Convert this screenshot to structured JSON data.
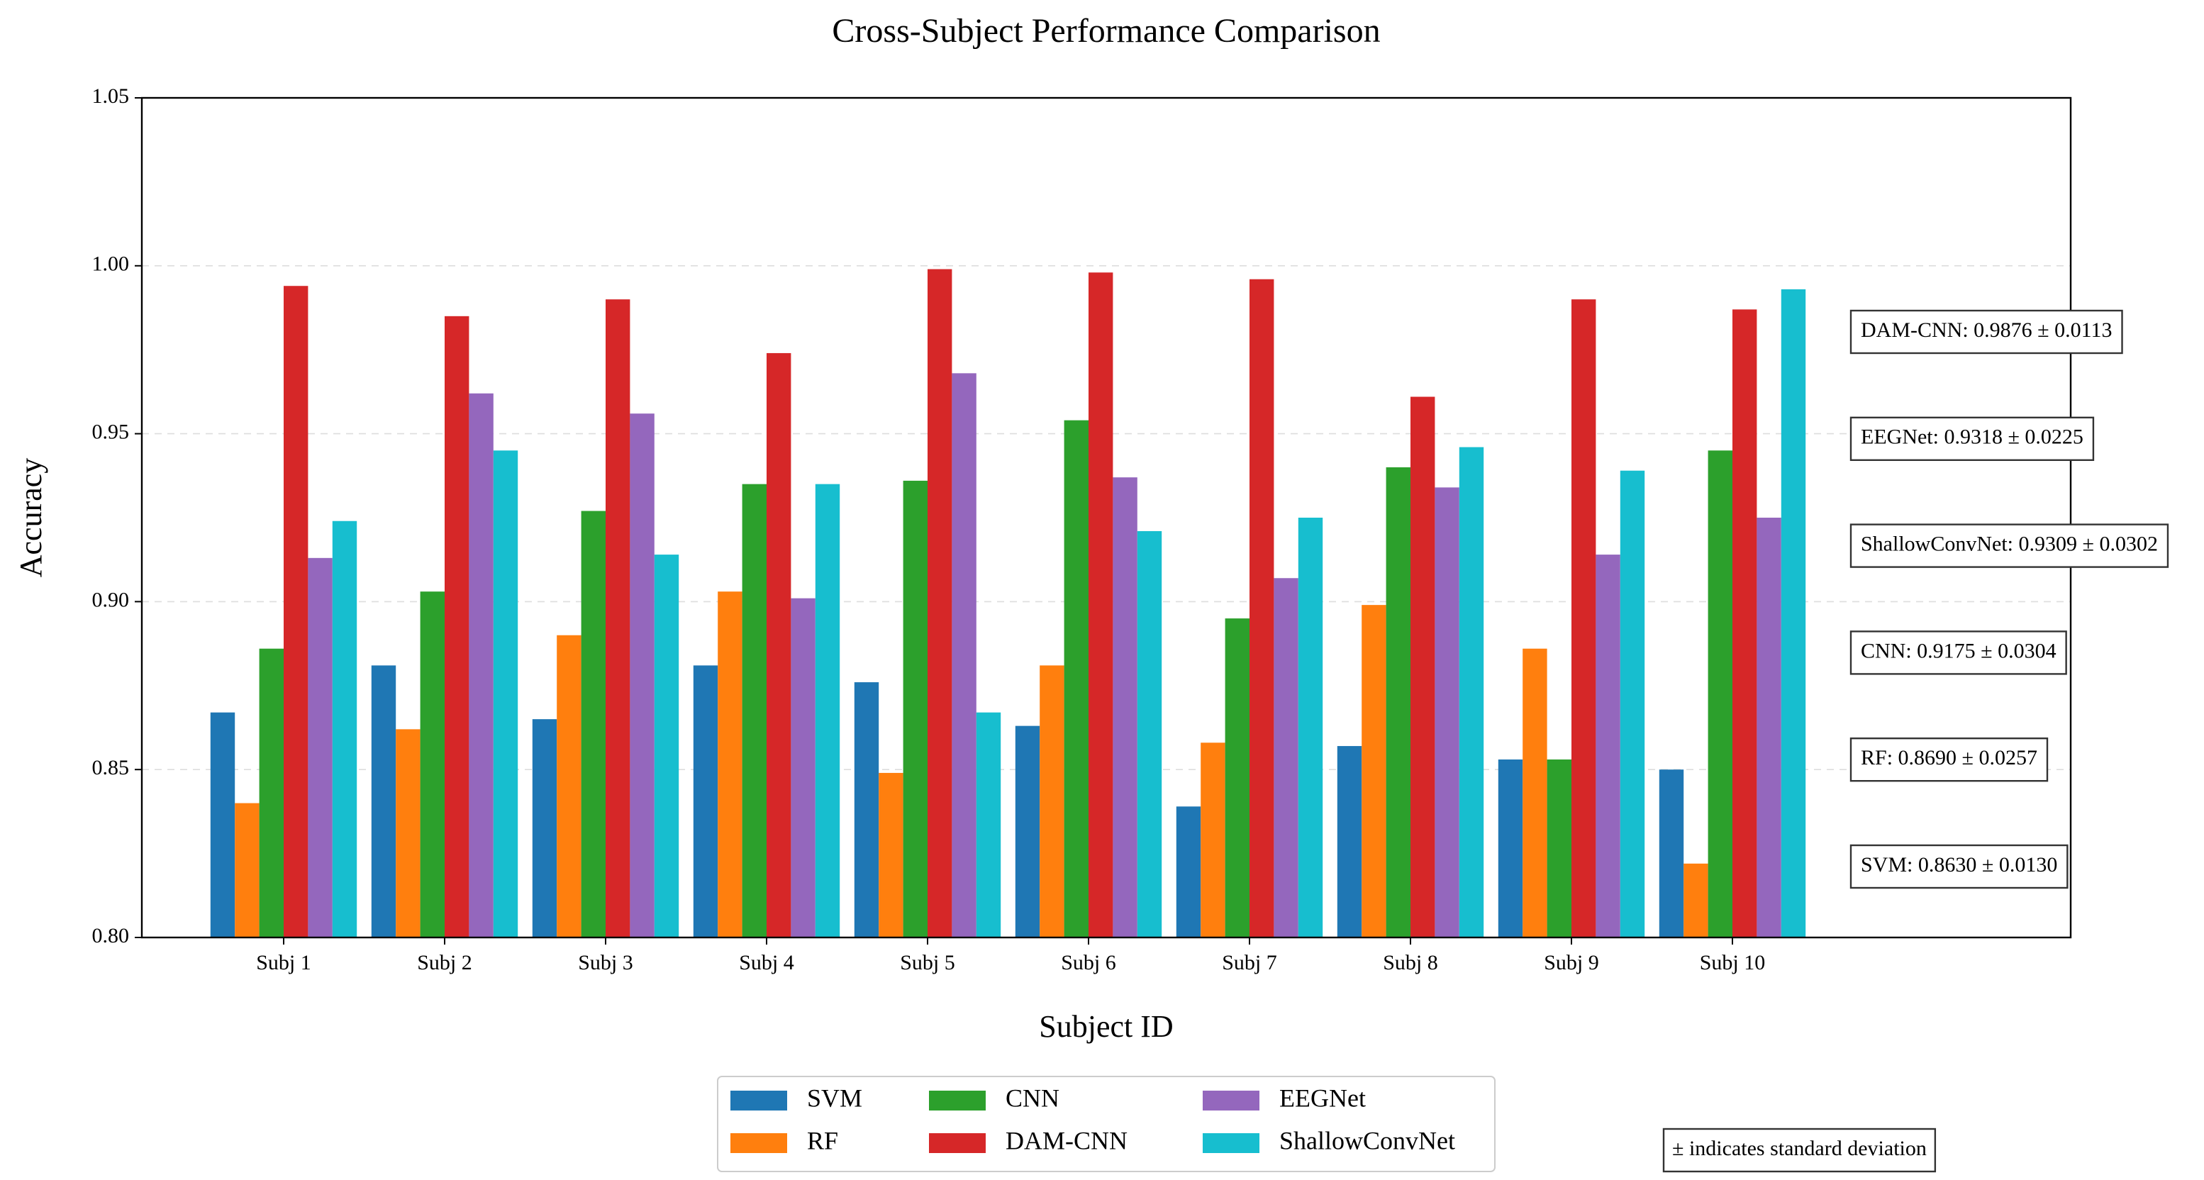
{
  "chart_data": {
    "type": "bar",
    "title": "Cross-Subject Performance Comparison",
    "x_label": "Subject ID",
    "y_label": "Accuracy",
    "categories": [
      "Subj 1",
      "Subj 2",
      "Subj 3",
      "Subj 4",
      "Subj 5",
      "Subj 6",
      "Subj 7",
      "Subj 8",
      "Subj 9",
      "Subj 10"
    ],
    "series": [
      {
        "name": "SVM",
        "color": "#1f77b4",
        "values": [
          0.867,
          0.881,
          0.865,
          0.881,
          0.876,
          0.863,
          0.839,
          0.857,
          0.853,
          0.85
        ]
      },
      {
        "name": "RF",
        "color": "#ff7f0e",
        "values": [
          0.84,
          0.862,
          0.89,
          0.903,
          0.849,
          0.881,
          0.858,
          0.899,
          0.886,
          0.822
        ]
      },
      {
        "name": "CNN",
        "color": "#2ca02c",
        "values": [
          0.886,
          0.903,
          0.927,
          0.935,
          0.936,
          0.954,
          0.895,
          0.94,
          0.853,
          0.945
        ]
      },
      {
        "name": "DAM-CNN",
        "color": "#d62728",
        "values": [
          0.994,
          0.985,
          0.99,
          0.974,
          0.999,
          0.998,
          0.996,
          0.961,
          0.99,
          0.987
        ]
      },
      {
        "name": "EEGNet",
        "color": "#9467bd",
        "values": [
          0.913,
          0.962,
          0.956,
          0.901,
          0.968,
          0.937,
          0.907,
          0.934,
          0.914,
          0.925
        ]
      },
      {
        "name": "ShallowConvNet",
        "color": "#17becf",
        "values": [
          0.924,
          0.945,
          0.914,
          0.935,
          0.867,
          0.921,
          0.925,
          0.946,
          0.939,
          0.993
        ]
      }
    ],
    "ylim": [
      0.8,
      1.05
    ],
    "yticks": [
      {
        "value": 0.8,
        "label": "0.80"
      },
      0.85,
      {
        "value": 0.9,
        "label": "0.90"
      },
      0.95,
      {
        "value": 1.0,
        "label": "1.00"
      },
      1.05
    ],
    "grid": true,
    "legend": "bottom",
    "annotations": [
      {
        "text": "DAM-CNN: 0.9876 ± 0.0113",
        "color": "#d62728"
      },
      {
        "text": "EEGNet: 0.9318 ± 0.0225",
        "color": "#9467bd"
      },
      {
        "text": "ShallowConvNet: 0.9309 ± 0.0302",
        "color": "#17becf"
      },
      {
        "text": "CNN: 0.9175 ± 0.0304",
        "color": "#2ca02c"
      },
      {
        "text": "RF: 0.8690 ± 0.0257",
        "color": "#ff7f0e"
      },
      {
        "text": "SVM: 0.8630 ± 0.0130",
        "color": "#1f77b4"
      }
    ],
    "note": "± indicates standard deviation"
  }
}
